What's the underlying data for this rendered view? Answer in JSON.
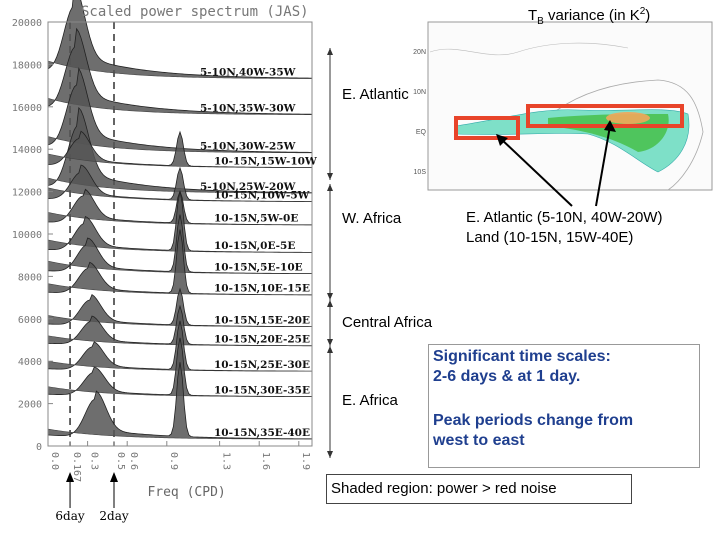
{
  "chart_data": {
    "type": "area",
    "title": "Scaled power spectrum (JAS)",
    "xlabel": "Freq (CPD)",
    "xlim": [
      0,
      2.0
    ],
    "ylim": [
      0,
      20000
    ],
    "xticks": [
      "0.0",
      "0.167",
      "0.3",
      "0.5",
      "0.6",
      "0.9",
      "1.3",
      "1.6",
      "1.9"
    ],
    "xtick_values": [
      0.0,
      0.167,
      0.3,
      0.5,
      0.6,
      0.9,
      1.3,
      1.6,
      1.9
    ],
    "yticks": [
      0,
      2000,
      4000,
      6000,
      8000,
      10000,
      12000,
      14000,
      16000,
      18000,
      20000
    ],
    "reference_lines": [
      {
        "x": 0.167,
        "label": "6day"
      },
      {
        "x": 0.5,
        "label": "2day"
      }
    ],
    "series": [
      {
        "name": "5-10N,40W-35W",
        "offset": 17200,
        "low_peak": 0.2,
        "low_amp": 3200,
        "diurnal_amp": 0,
        "shade_amp": 1400
      },
      {
        "name": "5-10N,35W-30W",
        "offset": 15500,
        "low_peak": 0.21,
        "low_amp": 3000,
        "diurnal_amp": 0,
        "shade_amp": 1300
      },
      {
        "name": "5-10N,30W-25W",
        "offset": 13700,
        "low_peak": 0.22,
        "low_amp": 3000,
        "diurnal_amp": 0,
        "shade_amp": 1300
      },
      {
        "name": "5-10N,25W-20W",
        "offset": 11800,
        "low_peak": 0.23,
        "low_amp": 3000,
        "diurnal_amp": 0,
        "shade_amp": 1200
      },
      {
        "name": "10-15N,15W-10W",
        "offset": 13000,
        "low_peak": 0.24,
        "low_amp": 1300,
        "diurnal_amp": 1600,
        "shade_amp": 1100
      },
      {
        "name": "10-15N,10W-5W",
        "offset": 11400,
        "low_peak": 0.25,
        "low_amp": 1300,
        "diurnal_amp": 1500,
        "shade_amp": 1100
      },
      {
        "name": "10-15N,5W-0E",
        "offset": 10300,
        "low_peak": 0.27,
        "low_amp": 1300,
        "diurnal_amp": 1500,
        "shade_amp": 1000
      },
      {
        "name": "10-15N,0E-5E",
        "offset": 9000,
        "low_peak": 0.28,
        "low_amp": 1300,
        "diurnal_amp": 2800,
        "shade_amp": 1000
      },
      {
        "name": "10-15N,5E-10E",
        "offset": 8000,
        "low_peak": 0.3,
        "low_amp": 1300,
        "diurnal_amp": 2700,
        "shade_amp": 1000
      },
      {
        "name": "10-15N,10E-15E",
        "offset": 7000,
        "low_peak": 0.31,
        "low_amp": 1200,
        "diurnal_amp": 3000,
        "shade_amp": 900
      },
      {
        "name": "10-15N,15E-20E",
        "offset": 5500,
        "low_peak": 0.32,
        "low_amp": 1200,
        "diurnal_amp": 1700,
        "shade_amp": 900
      },
      {
        "name": "10-15N,20E-25E",
        "offset": 4600,
        "low_peak": 0.33,
        "low_amp": 1100,
        "diurnal_amp": 1800,
        "shade_amp": 800
      },
      {
        "name": "10-15N,25E-30E",
        "offset": 3400,
        "low_peak": 0.34,
        "low_amp": 1100,
        "diurnal_amp": 2300,
        "shade_amp": 800
      },
      {
        "name": "10-15N,30E-35E",
        "offset": 2200,
        "low_peak": 0.35,
        "low_amp": 1100,
        "diurnal_amp": 2700,
        "shade_amp": 800
      },
      {
        "name": "10-15N,35E-40E",
        "offset": 200,
        "low_peak": 0.36,
        "low_amp": 1800,
        "diurnal_amp": 3500,
        "shade_amp": 800
      }
    ],
    "groups": [
      {
        "label": "E. Atlantic",
        "from": 0,
        "to": 3
      },
      {
        "label": "W. Africa",
        "from": 4,
        "to": 7
      },
      {
        "label": "Central Africa",
        "from": 8,
        "to": 11
      },
      {
        "label": "E. Africa",
        "from": 12,
        "to": 14
      }
    ]
  },
  "map": {
    "title_prefix": "T",
    "title_sub": "B",
    "title_mid": " variance (in K",
    "title_sup": "2",
    "title_suffix": ")",
    "highlight_color": "#e8442a",
    "callout_line1": "E. Atlantic (5-10N, 40W-20W)",
    "callout_line2": "Land (10-15N, 15W-40E)"
  },
  "notes": {
    "line1": "Significant time scales:",
    "line2": "2-6 days & at 1 day.",
    "line3": "Peak periods change from",
    "line4": "west to east",
    "text_color": "#1f3f8f",
    "shaded_note": "Shaded region: power > red noise"
  }
}
